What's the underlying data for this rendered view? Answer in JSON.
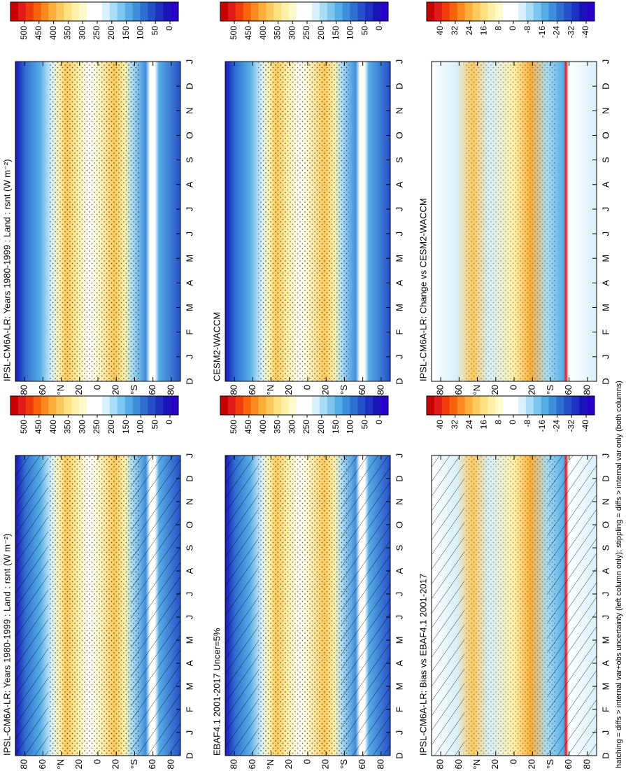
{
  "chart_data": [
    {
      "type": "heatmap",
      "title": "IPSL-CM6A-LR: Years 1980-1999 : Land : rsnt (W m⁻²)",
      "categories": [
        "D",
        "J",
        "F",
        "M",
        "A",
        "M",
        "J",
        "J",
        "A",
        "S",
        "O",
        "N",
        "D",
        "J"
      ],
      "ylim": [
        -90,
        90
      ],
      "yticks": [
        80,
        60,
        {
          "value": 40,
          "label": "°N"
        },
        20,
        0,
        {
          "value": -20,
          "label": "20"
        },
        {
          "value": -40,
          "label": "°S"
        },
        {
          "value": -60,
          "label": "60"
        },
        {
          "value": -80,
          "label": "80"
        }
      ],
      "colorbar": {
        "lim": [
          0,
          500
        ],
        "ticks": [
          500,
          450,
          400,
          350,
          300,
          250,
          200,
          150,
          100,
          50,
          0
        ]
      },
      "hatching": true
    },
    {
      "type": "heatmap",
      "title": "EBAF4.1 2001-2017 Uncer=5%",
      "categories": [
        "D",
        "J",
        "F",
        "M",
        "A",
        "M",
        "J",
        "J",
        "A",
        "S",
        "O",
        "N",
        "D",
        "J"
      ],
      "ylim": [
        -90,
        90
      ],
      "yticks": [
        80,
        60,
        {
          "value": 40,
          "label": "°N"
        },
        20,
        0,
        {
          "value": -20,
          "label": "20"
        },
        {
          "value": -40,
          "label": "°S"
        },
        {
          "value": -60,
          "label": "60"
        },
        {
          "value": -80,
          "label": "80"
        }
      ],
      "colorbar": {
        "lim": [
          0,
          500
        ],
        "ticks": [
          500,
          450,
          400,
          350,
          300,
          250,
          200,
          150,
          100,
          50,
          0
        ]
      },
      "hatching": true
    },
    {
      "type": "heatmap",
      "title": "IPSL-CM6A-LR: Bias vs EBAF4.1 2001-2017",
      "categories": [
        "D",
        "J",
        "F",
        "M",
        "A",
        "M",
        "J",
        "J",
        "A",
        "S",
        "O",
        "N",
        "D",
        "J"
      ],
      "ylim": [
        -90,
        90
      ],
      "yticks": [
        80,
        60,
        {
          "value": 40,
          "label": "°N"
        },
        20,
        0,
        {
          "value": -20,
          "label": "20"
        },
        {
          "value": -40,
          "label": "°S"
        },
        {
          "value": -60,
          "label": "60"
        },
        {
          "value": -80,
          "label": "80"
        }
      ],
      "colorbar": {
        "lim": [
          -40,
          40
        ],
        "ticks": [
          40,
          32,
          24,
          16,
          8,
          0,
          -8,
          -16,
          -24,
          -32,
          -40
        ]
      },
      "hatching": true
    },
    {
      "type": "heatmap",
      "title": "IPSL-CM6A-LR: Years 1980-1999 : Land : rsnt (W m⁻²)",
      "categories": [
        "D",
        "J",
        "F",
        "M",
        "A",
        "M",
        "J",
        "J",
        "A",
        "S",
        "O",
        "N",
        "D",
        "J"
      ],
      "ylim": [
        -90,
        90
      ],
      "yticks": [
        80,
        60,
        {
          "value": 40,
          "label": "°N"
        },
        20,
        0,
        {
          "value": -20,
          "label": "20"
        },
        {
          "value": -40,
          "label": "°S"
        },
        {
          "value": -60,
          "label": "60"
        },
        {
          "value": -80,
          "label": "80"
        }
      ],
      "colorbar": {
        "lim": [
          0,
          500
        ],
        "ticks": [
          500,
          450,
          400,
          350,
          300,
          250,
          200,
          150,
          100,
          50,
          0
        ]
      },
      "hatching": false
    },
    {
      "type": "heatmap",
      "title": "CESM2-WACCM",
      "categories": [
        "D",
        "J",
        "F",
        "M",
        "A",
        "M",
        "J",
        "J",
        "A",
        "S",
        "O",
        "N",
        "D",
        "J"
      ],
      "ylim": [
        -90,
        90
      ],
      "yticks": [
        80,
        60,
        {
          "value": 40,
          "label": "°N"
        },
        20,
        0,
        {
          "value": -20,
          "label": "20"
        },
        {
          "value": -40,
          "label": "°S"
        },
        {
          "value": -60,
          "label": "60"
        },
        {
          "value": -80,
          "label": "80"
        }
      ],
      "colorbar": {
        "lim": [
          0,
          500
        ],
        "ticks": [
          500,
          450,
          400,
          350,
          300,
          250,
          200,
          150,
          100,
          50,
          0
        ]
      },
      "hatching": false
    },
    {
      "type": "heatmap",
      "title": "IPSL-CM6A-LR: Change vs CESM2-WACCM",
      "categories": [
        "D",
        "J",
        "F",
        "M",
        "A",
        "M",
        "J",
        "J",
        "A",
        "S",
        "O",
        "N",
        "D",
        "J"
      ],
      "ylim": [
        -90,
        90
      ],
      "yticks": [
        80,
        60,
        {
          "value": 40,
          "label": "°N"
        },
        20,
        0,
        {
          "value": -20,
          "label": "20"
        },
        {
          "value": -40,
          "label": "°S"
        },
        {
          "value": -60,
          "label": "60"
        },
        {
          "value": -80,
          "label": "80"
        }
      ],
      "colorbar": {
        "lim": [
          -40,
          40
        ],
        "ticks": [
          40,
          32,
          24,
          16,
          8,
          0,
          -8,
          -16,
          -24,
          -32,
          -40
        ]
      },
      "hatching": false
    }
  ],
  "colors": [
    "#c80000",
    "#e31a1c",
    "#f03b0a",
    "#f7620a",
    "#fb8a1e",
    "#fdae3a",
    "#fec95c",
    "#ffe080",
    "#fff0a8",
    "#fffacd",
    "#ffffff",
    "#ffffff",
    "#d8f0fb",
    "#a9dcf5",
    "#7cc6ef",
    "#56ade6",
    "#3d8edb",
    "#2f6fd0",
    "#2550c8",
    "#1d32c0",
    "#1a14b8",
    "#2a00c8"
  ],
  "footnote": "hatching = diffs > internal var+obs uncertainty (left column only); stippling = diffs > internal var only (both columns)"
}
